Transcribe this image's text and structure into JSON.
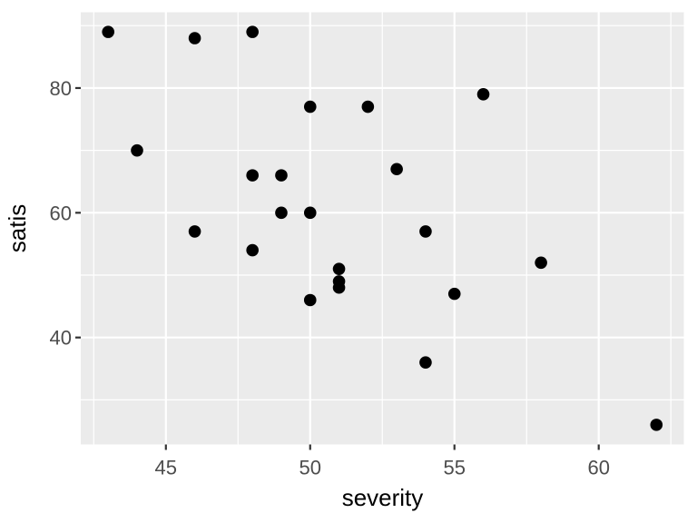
{
  "chart_data": {
    "type": "scatter",
    "title": "",
    "xlabel": "severity",
    "ylabel": "satis",
    "points": [
      [
        43,
        89
      ],
      [
        44,
        70
      ],
      [
        46,
        88
      ],
      [
        46,
        57
      ],
      [
        48,
        89
      ],
      [
        48,
        66
      ],
      [
        48,
        54
      ],
      [
        49,
        66
      ],
      [
        49,
        60
      ],
      [
        50,
        77
      ],
      [
        50,
        60
      ],
      [
        50,
        46
      ],
      [
        51,
        51
      ],
      [
        51,
        49
      ],
      [
        51,
        48
      ],
      [
        52,
        77
      ],
      [
        53,
        67
      ],
      [
        54,
        57
      ],
      [
        54,
        36
      ],
      [
        55,
        47
      ],
      [
        56,
        79
      ],
      [
        58,
        52
      ],
      [
        62,
        26
      ]
    ],
    "x_ticks": [
      45,
      50,
      55,
      60
    ],
    "y_ticks": [
      40,
      60,
      80
    ],
    "x_minor_gridlines": [
      42.5,
      47.5,
      52.5,
      57.5,
      62.5
    ],
    "y_minor_gridlines": [
      30,
      50,
      70,
      90
    ],
    "xlim": [
      42.05,
      62.95
    ],
    "ylim": [
      22.85,
      92.15
    ],
    "grid": "major+minor",
    "legend": "none",
    "theme": {
      "background": "#FFFFFF",
      "panel_bg": "#EBEBEB",
      "grid_color": "#FFFFFF",
      "point_color": "#000000",
      "axis_text_color": "#4D4D4D",
      "axis_title_color": "#000000",
      "tick_mark_color": "#333333"
    }
  }
}
